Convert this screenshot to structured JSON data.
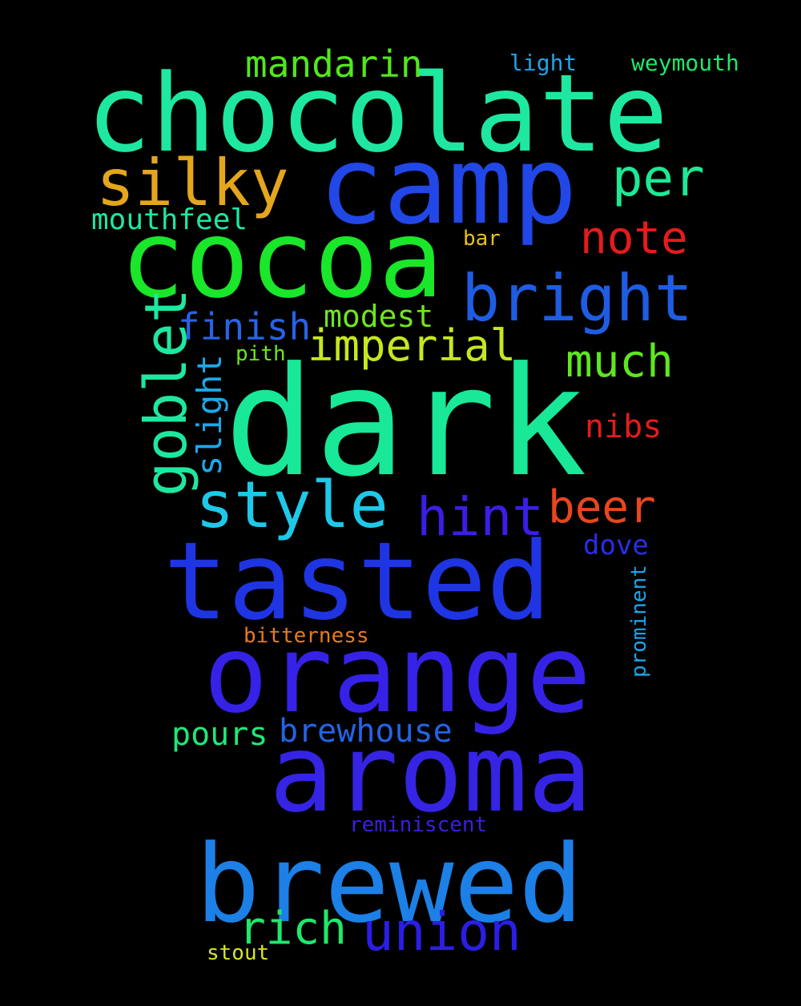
{
  "cloud": {
    "background": "#000000",
    "words": [
      {
        "id": "chocolate",
        "text": "chocolate",
        "color": "#1ee8a0"
      },
      {
        "id": "dark",
        "text": "dark",
        "color": "#18e898"
      },
      {
        "id": "camp",
        "text": "camp",
        "color": "#2147e6"
      },
      {
        "id": "cocoa",
        "text": "cocoa",
        "color": "#1ae62a"
      },
      {
        "id": "tasted",
        "text": "tasted",
        "color": "#1f35e3"
      },
      {
        "id": "orange",
        "text": "orange",
        "color": "#3522e6"
      },
      {
        "id": "aroma",
        "text": "aroma",
        "color": "#3524e3"
      },
      {
        "id": "brewed",
        "text": "brewed",
        "color": "#1c80e6"
      },
      {
        "id": "silky",
        "text": "silky",
        "color": "#e3a61c"
      },
      {
        "id": "bright",
        "text": "bright",
        "color": "#1e5de3"
      },
      {
        "id": "style",
        "text": "style",
        "color": "#1ec8e8"
      },
      {
        "id": "goblet",
        "text": "goblet",
        "color": "#1ee8a0"
      },
      {
        "id": "mandarin",
        "text": "mandarin",
        "color": "#52e61e"
      },
      {
        "id": "per",
        "text": "per",
        "color": "#1ee894"
      },
      {
        "id": "note",
        "text": "note",
        "color": "#e31c1c"
      },
      {
        "id": "imperial",
        "text": "imperial",
        "color": "#c8e61e"
      },
      {
        "id": "much",
        "text": "much",
        "color": "#5ee61e"
      },
      {
        "id": "hint",
        "text": "hint",
        "color": "#3a1ee6"
      },
      {
        "id": "beer",
        "text": "beer",
        "color": "#e8461e"
      },
      {
        "id": "union",
        "text": "union",
        "color": "#2a1ee6"
      },
      {
        "id": "rich",
        "text": "rich",
        "color": "#1ee86c"
      },
      {
        "id": "finish",
        "text": "finish",
        "color": "#2863e6"
      },
      {
        "id": "modest",
        "text": "modest",
        "color": "#6ee61e"
      },
      {
        "id": "slight",
        "text": "slight",
        "color": "#1ea8e8"
      },
      {
        "id": "nibs",
        "text": "nibs",
        "color": "#e31c1c"
      },
      {
        "id": "mouthfeel",
        "text": "mouthfeel",
        "color": "#1ee8a0"
      },
      {
        "id": "brewhouse",
        "text": "brewhouse",
        "color": "#2463e6"
      },
      {
        "id": "pours",
        "text": "pours",
        "color": "#1ee878"
      },
      {
        "id": "dove",
        "text": "dove",
        "color": "#2a2ee6"
      },
      {
        "id": "light",
        "text": "light",
        "color": "#1ea4e8"
      },
      {
        "id": "weymouth",
        "text": "weymouth",
        "color": "#1ee86c"
      },
      {
        "id": "bar",
        "text": "bar",
        "color": "#e8c01e"
      },
      {
        "id": "pith",
        "text": "pith",
        "color": "#6ee61e"
      },
      {
        "id": "prominent",
        "text": "prominent",
        "color": "#1ea4e8"
      },
      {
        "id": "bitterness",
        "text": "bitterness",
        "color": "#e87a1e"
      },
      {
        "id": "reminiscent",
        "text": "reminiscent",
        "color": "#3a1ee6"
      },
      {
        "id": "stout",
        "text": "stout",
        "color": "#d8e61e"
      }
    ]
  }
}
